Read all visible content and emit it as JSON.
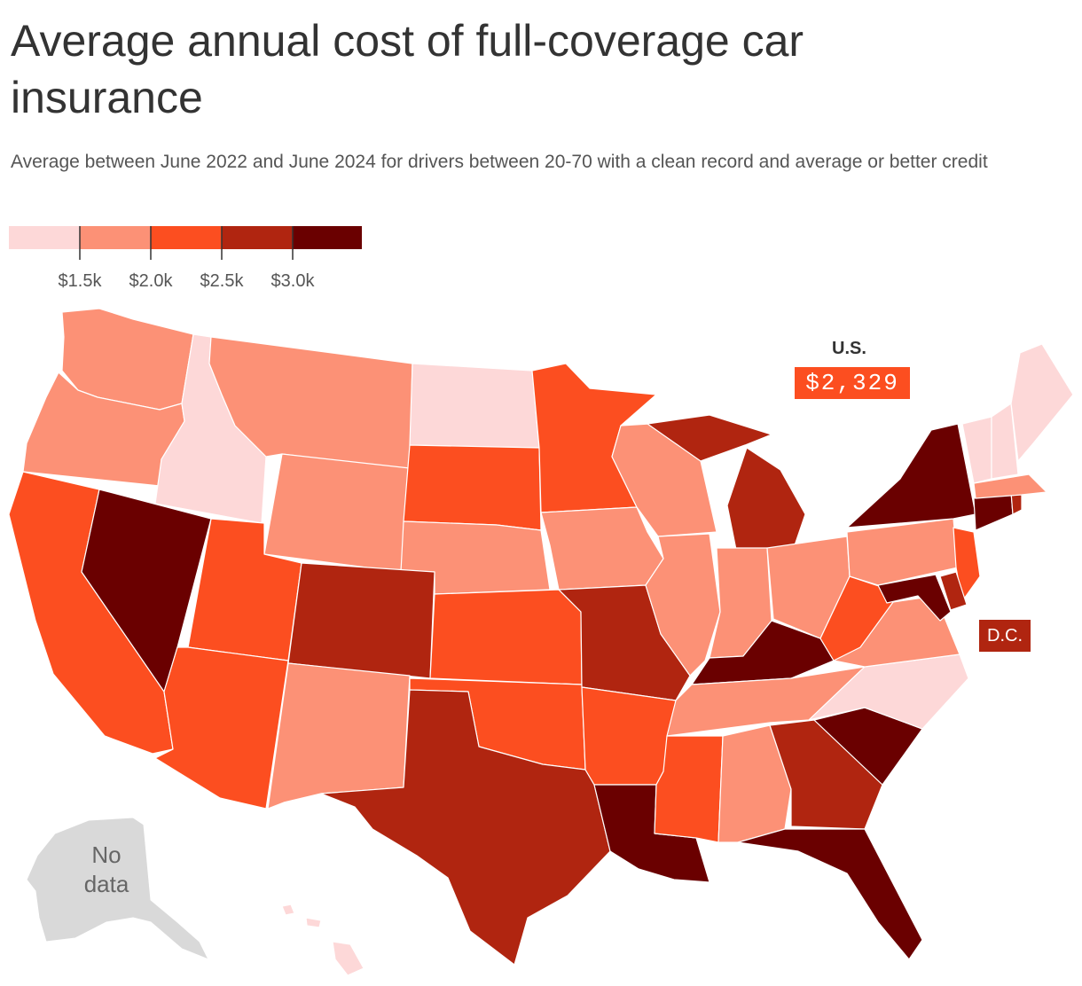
{
  "title": "Average annual cost of full-coverage car insurance",
  "subtitle": "Average between June 2022 and June 2024 for drivers between 20-70 with a clean record and average or better credit",
  "legend": {
    "colors": [
      "#fdd8d8",
      "#fc9176",
      "#fc4e20",
      "#b02510",
      "#6a0000"
    ],
    "ticks": [
      "$1.5k",
      "$2.0k",
      "$2.5k",
      "$3.0k"
    ]
  },
  "us_average": {
    "label": "U.S.",
    "value": "$2,329"
  },
  "dc": {
    "label": "D.C.",
    "bin": 3
  },
  "alaska": {
    "label": "No data",
    "color": "#d9d9d9"
  },
  "no_data_line1": "No",
  "no_data_line2": "data",
  "bins": {
    "WA": 1,
    "OR": 1,
    "ID": 0,
    "MT": 1,
    "WY": 1,
    "ND": 0,
    "SD": 2,
    "NE": 1,
    "MN": 2,
    "CA": 2,
    "NV": 4,
    "UT": 2,
    "AZ": 2,
    "CO": 3,
    "NM": 1,
    "KS": 2,
    "OK": 2,
    "TX": 3,
    "IA": 1,
    "MO": 3,
    "AR": 2,
    "LA": 4,
    "WI": 1,
    "IL": 1,
    "MI": 3,
    "IN": 1,
    "OH": 1,
    "KY": 4,
    "TN": 1,
    "MS": 2,
    "AL": 1,
    "GA": 3,
    "FL": 4,
    "SC": 4,
    "NC": 0,
    "VA": 1,
    "WV": 2,
    "PA": 1,
    "NY": 4,
    "VT": 0,
    "NH": 0,
    "ME": 0,
    "MA": 1,
    "RI": 3,
    "CT": 4,
    "NJ": 2,
    "DE": 3,
    "MD": 4,
    "HI": 0
  }
}
